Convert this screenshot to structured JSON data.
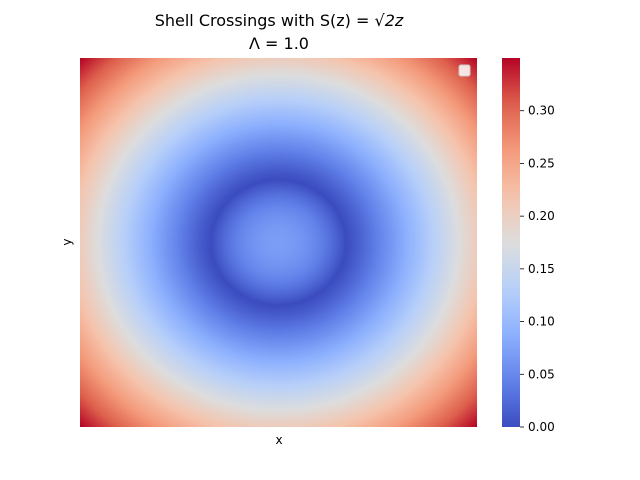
{
  "chart_data": {
    "type": "heatmap",
    "title_line1_prefix": "Shell Crossings with S(z) = ",
    "title_line1_math": "√2z",
    "title_line2": "Λ = 1.0",
    "xlabel": "x",
    "ylabel": "y",
    "colormap": "coolwarm",
    "colorbar": {
      "vmin": 0.0,
      "vmax": 0.35,
      "ticks": [
        0.0,
        0.05,
        0.1,
        0.15,
        0.2,
        0.25,
        0.3
      ],
      "tick_labels": [
        "0.00",
        "0.05",
        "0.10",
        "0.15",
        "0.20",
        "0.25",
        "0.30"
      ]
    },
    "field": {
      "description_center": [
        0.5,
        0.5
      ],
      "center_value": 0.07,
      "ring_min_value": 0.0,
      "corner_value": 0.35
    },
    "legend": {
      "position": "top-right",
      "entries": []
    },
    "xticks": [],
    "yticks": []
  }
}
